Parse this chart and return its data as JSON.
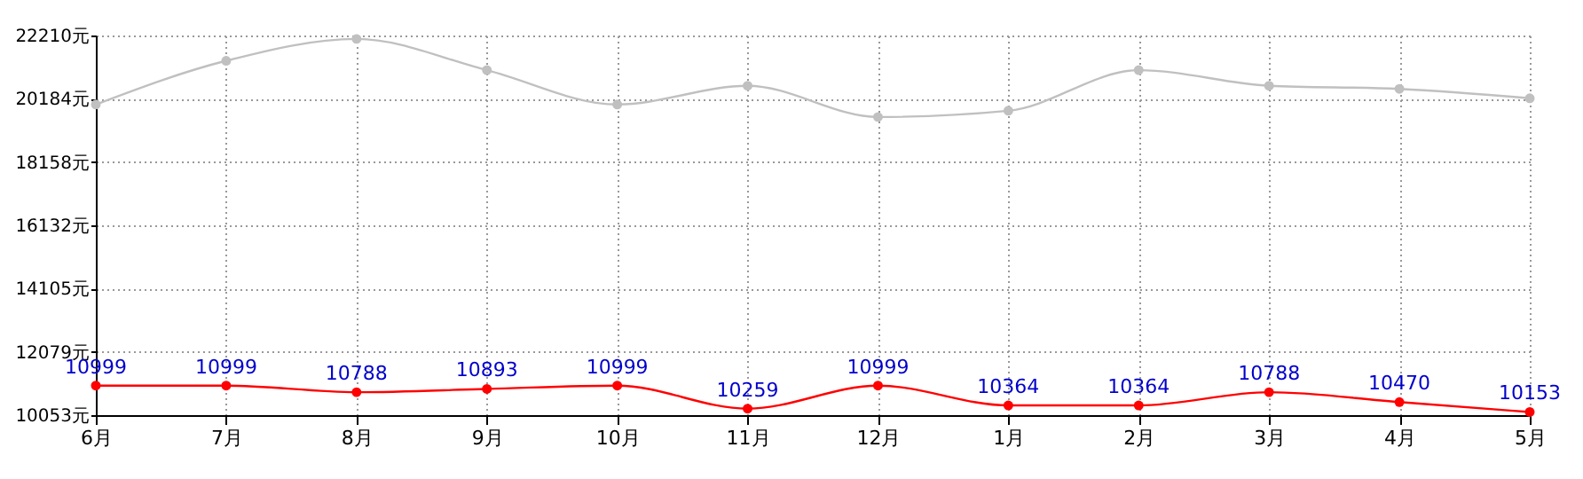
{
  "chart_data": {
    "type": "line",
    "categories": [
      "6月",
      "7月",
      "8月",
      "9月",
      "10月",
      "11月",
      "12月",
      "1月",
      "2月",
      "3月",
      "4月",
      "5月"
    ],
    "series": [
      {
        "color": "#c0c0c0",
        "values": [
          20000,
          21400,
          22100,
          21100,
          20000,
          20600,
          19600,
          19800,
          21100,
          20600,
          20500,
          20200
        ]
      },
      {
        "color": "#ff0000",
        "values": [
          10999,
          10999,
          10788,
          10893,
          10999,
          10259,
          10999,
          10364,
          10364,
          10788,
          10470,
          10153
        ],
        "value_labels": [
          "10999",
          "10999",
          "10788",
          "10893",
          "10999",
          "10259",
          "10999",
          "10364",
          "10364",
          "10788",
          "10470",
          "10153"
        ]
      }
    ],
    "ylim": [
      10053,
      22210
    ],
    "yticks": [
      {
        "value": 10053,
        "label": "10053元"
      },
      {
        "value": 12079,
        "label": "12079元"
      },
      {
        "value": 14105,
        "label": "14105元"
      },
      {
        "value": 16132,
        "label": "16132元"
      },
      {
        "value": 18158,
        "label": "18158元"
      },
      {
        "value": 20184,
        "label": "20184元"
      },
      {
        "value": 22210,
        "label": "22210元"
      }
    ],
    "grid": true,
    "marker": "circle",
    "line_style": "solid"
  }
}
